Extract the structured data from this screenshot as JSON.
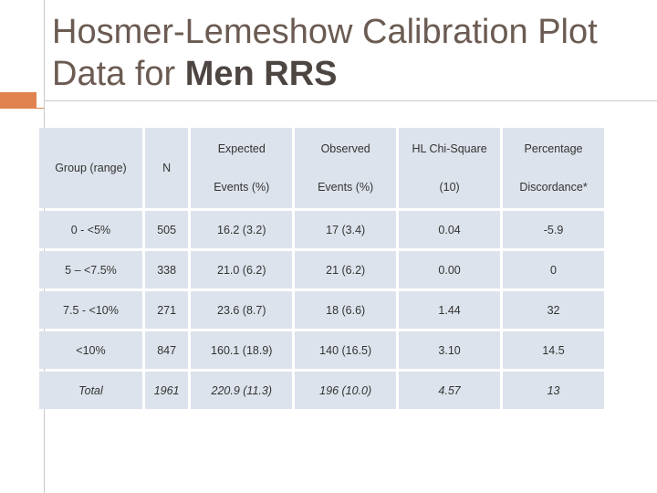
{
  "slide": {
    "title_line1": "Hosmer-Lemeshow Calibration Plot",
    "title_line2_prefix": "Data for ",
    "title_line2_bold": "Men RRS"
  },
  "table": {
    "headers": [
      {
        "line1": "Group (range)"
      },
      {
        "line1": "N"
      },
      {
        "line1": "Expected",
        "line2": "Events (%)"
      },
      {
        "line1": "Observed",
        "line2": "Events (%)"
      },
      {
        "line1": "HL Chi-Square",
        "line2": "(10)"
      },
      {
        "line1": "Percentage",
        "line2": "Discordance*"
      }
    ],
    "rows": [
      [
        "0 - <5%",
        "505",
        "16.2 (3.2)",
        "17 (3.4)",
        "0.04",
        "-5.9"
      ],
      [
        "5 – <7.5%",
        "338",
        "21.0 (6.2)",
        "21 (6.2)",
        "0.00",
        "0"
      ],
      [
        "7.5 - <10%",
        "271",
        "23.6 (8.7)",
        "18 (6.6)",
        "1.44",
        "32"
      ],
      [
        "<10%",
        "847",
        "160.1 (18.9)",
        "140 (16.5)",
        "3.10",
        "14.5"
      ]
    ],
    "total_row": [
      "Total",
      "1961",
      "220.9 (11.3)",
      "196 (10.0)",
      "4.57",
      "13"
    ]
  }
}
